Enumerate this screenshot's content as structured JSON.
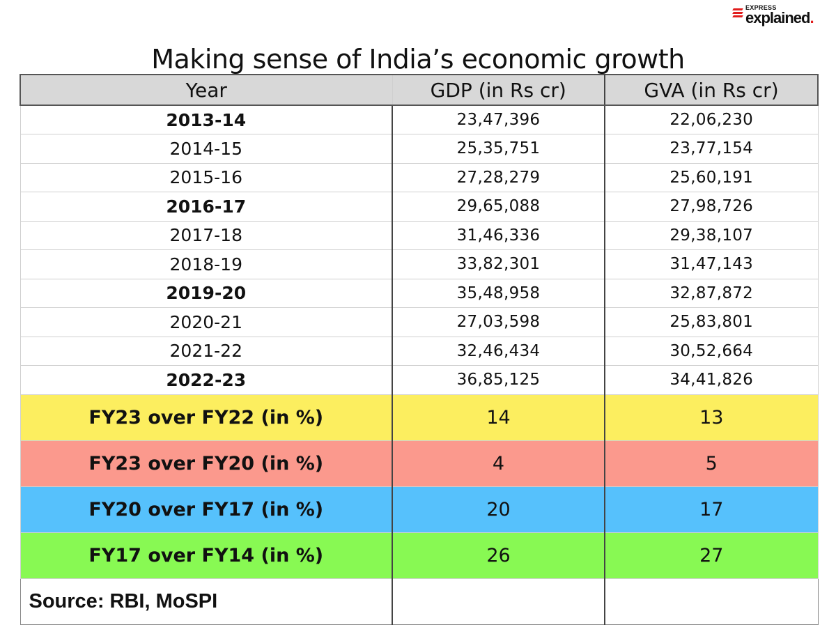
{
  "brand": {
    "small": "EXPRESS",
    "big": "explained"
  },
  "title": "Making sense of India’s economic growth",
  "table": {
    "headers": [
      "Year",
      "GDP (in Rs cr)",
      "GVA (in Rs cr)"
    ],
    "rows": [
      {
        "year": "2013-14",
        "gdp": "23,47,396",
        "gva": "22,06,230"
      },
      {
        "year": "2014-15",
        "gdp": "25,35,751",
        "gva": "23,77,154"
      },
      {
        "year": "2015-16",
        "gdp": "27,28,279",
        "gva": "25,60,191"
      },
      {
        "year": "2016-17",
        "gdp": "29,65,088",
        "gva": "27,98,726"
      },
      {
        "year": "2017-18",
        "gdp": "31,46,336",
        "gva": "29,38,107"
      },
      {
        "year": "2018-19",
        "gdp": "33,82,301",
        "gva": "31,47,143"
      },
      {
        "year": "2019-20",
        "gdp": "35,48,958",
        "gva": "32,87,872"
      },
      {
        "year": "2020-21",
        "gdp": "27,03,598",
        "gva": "25,83,801"
      },
      {
        "year": "2021-22",
        "gdp": "32,46,434",
        "gva": "30,52,664"
      },
      {
        "year": "2022-23",
        "gdp": "36,85,125",
        "gva": "34,41,826"
      }
    ],
    "growth": [
      {
        "label": "FY23 over FY22 (in %)",
        "gdp": "14",
        "gva": "13",
        "color": "#fcee5f"
      },
      {
        "label": "FY23 over FY20 (in %)",
        "gdp": "4",
        "gva": "5",
        "color": "#fb998d"
      },
      {
        "label": "FY20 over FY17 (in %)",
        "gdp": "20",
        "gva": "17",
        "color": "#56c1fc"
      },
      {
        "label": "FY17 over FY14 (in %)",
        "gdp": "26",
        "gva": "27",
        "color": "#88f953"
      }
    ],
    "source": "Source: RBI, MoSPI"
  }
}
